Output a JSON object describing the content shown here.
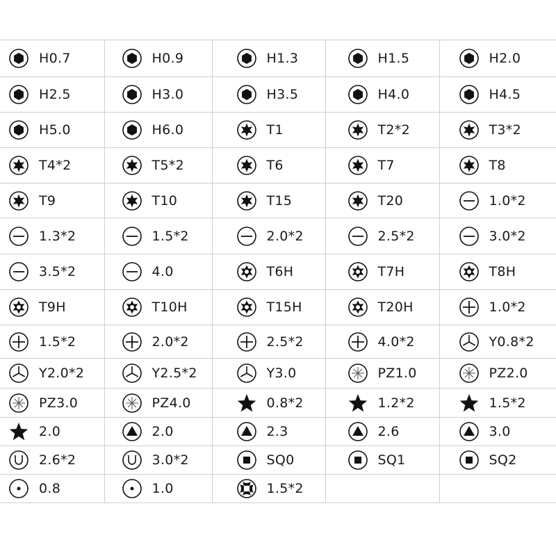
{
  "rows": [
    [
      {
        "icon": "hex-icon",
        "label": "H0.7"
      },
      {
        "icon": "hex-icon",
        "label": "H0.9"
      },
      {
        "icon": "hex-icon",
        "label": "H1.3"
      },
      {
        "icon": "hex-icon",
        "label": "H1.5"
      },
      {
        "icon": "hex-icon",
        "label": "H2.0"
      }
    ],
    [
      {
        "icon": "hex-icon",
        "label": "H2.5"
      },
      {
        "icon": "hex-icon",
        "label": "H3.0"
      },
      {
        "icon": "hex-icon",
        "label": "H3.5"
      },
      {
        "icon": "hex-icon",
        "label": "H4.0"
      },
      {
        "icon": "hex-icon",
        "label": "H4.5"
      }
    ],
    [
      {
        "icon": "hex-icon",
        "label": "H5.0"
      },
      {
        "icon": "hex-icon",
        "label": "H6.0"
      },
      {
        "icon": "torx-icon",
        "label": "T1"
      },
      {
        "icon": "torx-icon",
        "label": "T2*2"
      },
      {
        "icon": "torx-icon",
        "label": "T3*2"
      }
    ],
    [
      {
        "icon": "torx-icon",
        "label": "T4*2"
      },
      {
        "icon": "torx-icon",
        "label": "T5*2"
      },
      {
        "icon": "torx-icon",
        "label": "T6"
      },
      {
        "icon": "torx-icon",
        "label": "T7"
      },
      {
        "icon": "torx-icon",
        "label": "T8"
      }
    ],
    [
      {
        "icon": "torx-icon",
        "label": "T9"
      },
      {
        "icon": "torx-icon",
        "label": "T10"
      },
      {
        "icon": "torx-icon",
        "label": "T15"
      },
      {
        "icon": "torx-icon",
        "label": "T20"
      },
      {
        "icon": "slotted-icon",
        "label": "1.0*2"
      }
    ],
    [
      {
        "icon": "slotted-icon",
        "label": "1.3*2"
      },
      {
        "icon": "slotted-icon",
        "label": "1.5*2"
      },
      {
        "icon": "slotted-icon",
        "label": "2.0*2"
      },
      {
        "icon": "slotted-icon",
        "label": "2.5*2"
      },
      {
        "icon": "slotted-icon",
        "label": "3.0*2"
      }
    ],
    [
      {
        "icon": "slotted-icon",
        "label": "3.5*2"
      },
      {
        "icon": "slotted-icon",
        "label": "4.0"
      },
      {
        "icon": "torx-hole-icon",
        "label": "T6H"
      },
      {
        "icon": "torx-hole-icon",
        "label": "T7H"
      },
      {
        "icon": "torx-hole-icon",
        "label": "T8H"
      }
    ],
    [
      {
        "icon": "torx-hole-icon",
        "label": "T9H"
      },
      {
        "icon": "torx-hole-icon",
        "label": "T10H"
      },
      {
        "icon": "torx-hole-icon",
        "label": "T15H"
      },
      {
        "icon": "torx-hole-icon",
        "label": "T20H"
      },
      {
        "icon": "phillips-icon",
        "label": "1.0*2"
      }
    ],
    [
      {
        "icon": "phillips-icon",
        "label": "1.5*2"
      },
      {
        "icon": "phillips-icon",
        "label": "2.0*2"
      },
      {
        "icon": "phillips-icon",
        "label": "2.5*2"
      },
      {
        "icon": "phillips-icon",
        "label": "4.0*2"
      },
      {
        "icon": "tri-wing-icon",
        "label": "Y0.8*2"
      }
    ],
    [
      {
        "icon": "tri-wing-icon",
        "label": "Y2.0*2"
      },
      {
        "icon": "tri-wing-icon",
        "label": "Y2.5*2"
      },
      {
        "icon": "tri-wing-icon",
        "label": "Y3.0"
      },
      {
        "icon": "pozidriv-icon",
        "label": "PZ1.0"
      },
      {
        "icon": "pozidriv-icon",
        "label": "PZ2.0"
      }
    ],
    [
      {
        "icon": "pozidriv-icon",
        "label": "PZ3.0"
      },
      {
        "icon": "pozidriv-icon",
        "label": "PZ4.0"
      },
      {
        "icon": "pentalobe-star-icon",
        "label": "0.8*2"
      },
      {
        "icon": "pentalobe-star-icon",
        "label": "1.2*2"
      },
      {
        "icon": "pentalobe-star-icon",
        "label": "1.5*2"
      }
    ],
    [
      {
        "icon": "pentalobe-star-icon",
        "label": "2.0"
      },
      {
        "icon": "triangle-icon",
        "label": "2.0"
      },
      {
        "icon": "triangle-icon",
        "label": "2.3"
      },
      {
        "icon": "triangle-icon",
        "label": "2.6"
      },
      {
        "icon": "triangle-icon",
        "label": "3.0"
      }
    ],
    [
      {
        "icon": "u-shape-icon",
        "label": "2.6*2"
      },
      {
        "icon": "u-shape-icon",
        "label": "3.0*2"
      },
      {
        "icon": "square-icon",
        "label": "SQ0"
      },
      {
        "icon": "square-icon",
        "label": "SQ1"
      },
      {
        "icon": "square-icon",
        "label": "SQ2"
      }
    ],
    [
      {
        "icon": "dot-icon",
        "label": "0.8"
      },
      {
        "icon": "dot-icon",
        "label": "1.0"
      },
      {
        "icon": "cross-lobe-icon",
        "label": "1.5*2"
      },
      null,
      null
    ]
  ]
}
